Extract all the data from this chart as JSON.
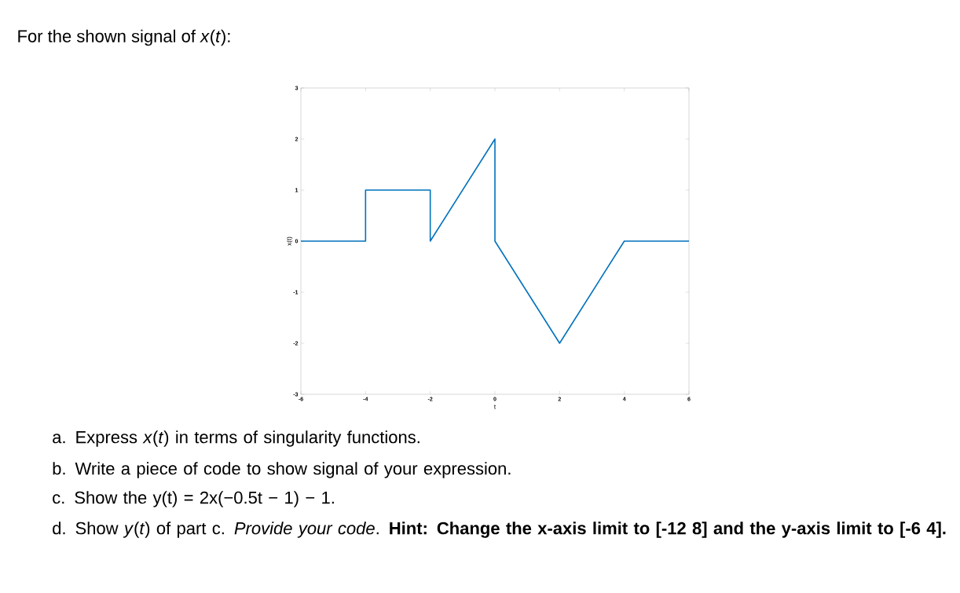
{
  "chart_data": {
    "type": "line",
    "title": "For the shown signal of *x*(*t*):",
    "xlabel": "t",
    "ylabel": "x(t)",
    "x": [
      -6,
      -4,
      -4,
      -2,
      -2,
      0,
      0,
      2,
      4,
      6
    ],
    "series": [
      {
        "color": "#0072bd",
        "values": [
          0,
          0,
          1,
          1,
          0,
          2,
          0,
          -2,
          0,
          0
        ]
      }
    ],
    "xlim": [
      -6,
      6
    ],
    "ylim": [
      -3,
      3
    ],
    "xticks": [
      -6,
      -4,
      -2,
      0,
      2,
      4,
      6
    ],
    "yticks": [
      -3,
      -2,
      -1,
      0,
      1,
      2,
      3
    ],
    "annotations": [
      "a. Express *x*(*t*) in terms of singularity functions.",
      "b. Write a piece of code to show signal of your expression.",
      "c. Show the y(t) = 2x(−0.5t − 1) − 1.",
      "d. Show *y*(*t*) of part c. *Provide your code*. **Hint: Change the x-axis limit to [-12 8] and the y-axis limit to [-6 4].**"
    ]
  }
}
